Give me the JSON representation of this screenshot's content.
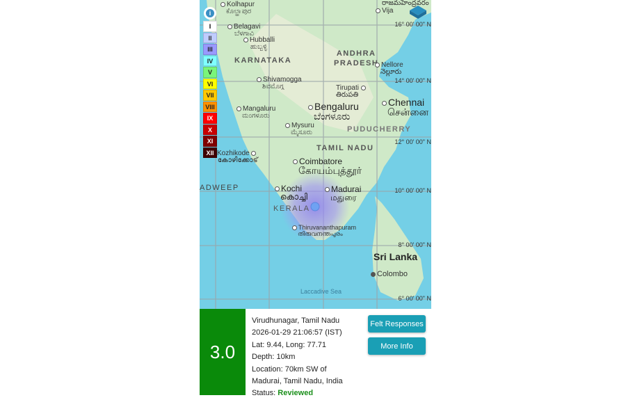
{
  "map": {
    "labels": {
      "kolhapur": "Kolhapur",
      "kolhapur_local": "ಕೊಲ್ಹಾಪುರ",
      "belagavi": "Belagavi",
      "belagavi_local": "ಬೆಳಗಾವಿ",
      "hubballi": "Hubballi",
      "hubballi_local": "ಹುಬ್ಬಳ್ಳಿ",
      "karnataka": "KARNATAKA",
      "andhra": "ANDHRA",
      "pradesh": "PRADESH",
      "nellore": "Nellore",
      "nellore_local": "నెల్లూరు",
      "shivamogga": "Shivamogga",
      "shivamogga_local": "ಶಿವಮೊಗ್ಗ",
      "tirupati": "Tirupati",
      "tirupati_local": "తిరుపతి",
      "chennai": "Chennai",
      "chennai_local": "சென்னை",
      "bengaluru": "Bengaluru",
      "bengaluru_local": "ಬೆಂಗಳೂರು",
      "mangaluru": "Mangaluru",
      "mangaluru_local": "ಮಂಗಳೂರು",
      "mysuru": "Mysuru",
      "mysuru_local": "ಮೈಸೂರು",
      "puducherry": "PUDUCHERRY",
      "tamil_nadu": "TAMIL NADU",
      "kozhikode": "Kozhikode",
      "kozhikode_local": "കോഴിക്കോട്",
      "coimbatore": "Coimbatore",
      "coimbatore_local": "கோயம்புத்தூர்",
      "lakshadweep": "ADWEEP",
      "kochi": "Kochi",
      "kochi_local": "കൊച്ചി",
      "madurai": "Madurai",
      "madurai_local": "மதுரை",
      "kerala": "KERALA",
      "thiruvananthapuram": "Thiruvananthapuram",
      "thiruvananthapuram_local": "തിരുവനന്തപുരം",
      "sri_lanka": "Sri Lanka",
      "colombo": "Colombo",
      "laccadive_sea": "Laccadive Sea",
      "vijayawada": "Vija",
      "top_local": "రాజమహేంద్రవరం"
    },
    "grid_labels": [
      "16° 00' 00\" N",
      "14° 00' 00\" N",
      "12° 00' 00\" N",
      "10° 00' 00\" N",
      "8° 00' 00\" N",
      "6° 00' 00\" N"
    ],
    "legend": [
      {
        "label": "I",
        "color": "#ffffff",
        "text": "#000"
      },
      {
        "label": "II",
        "color": "#bfccff",
        "text": "#333"
      },
      {
        "label": "III",
        "color": "#9999ff",
        "text": "#222"
      },
      {
        "label": "IV",
        "color": "#80ffff",
        "text": "#222"
      },
      {
        "label": "V",
        "color": "#7af57a",
        "text": "#222"
      },
      {
        "label": "VI",
        "color": "#ffff00",
        "text": "#222"
      },
      {
        "label": "VII",
        "color": "#ffc800",
        "text": "#222"
      },
      {
        "label": "VIII",
        "color": "#ff9100",
        "text": "#222"
      },
      {
        "label": "IX",
        "color": "#ff0000",
        "text": "#fff"
      },
      {
        "label": "X",
        "color": "#c80000",
        "text": "#fff"
      },
      {
        "label": "XI",
        "color": "#800000",
        "text": "#fff"
      },
      {
        "label": "XII",
        "color": "#400000",
        "text": "#fff"
      }
    ],
    "info_icon": "i",
    "epicenter": {
      "lat": 9.44,
      "long": 77.71
    }
  },
  "event": {
    "magnitude": "3.0",
    "magnitude_color": "#0a8a0a",
    "region": "Virudhunagar, Tamil Nadu",
    "datetime": "2026-01-29 21:06:57 (IST)",
    "latlong": "Lat: 9.44, Long: 77.71",
    "depth": "Depth: 10km",
    "location_line1": "Location: 70km SW of",
    "location_line2": "Madurai, Tamil Nadu, India",
    "status_label": "Status: ",
    "status_value": "Reviewed"
  },
  "buttons": {
    "felt": "Felt Responses",
    "more": "More Info"
  }
}
